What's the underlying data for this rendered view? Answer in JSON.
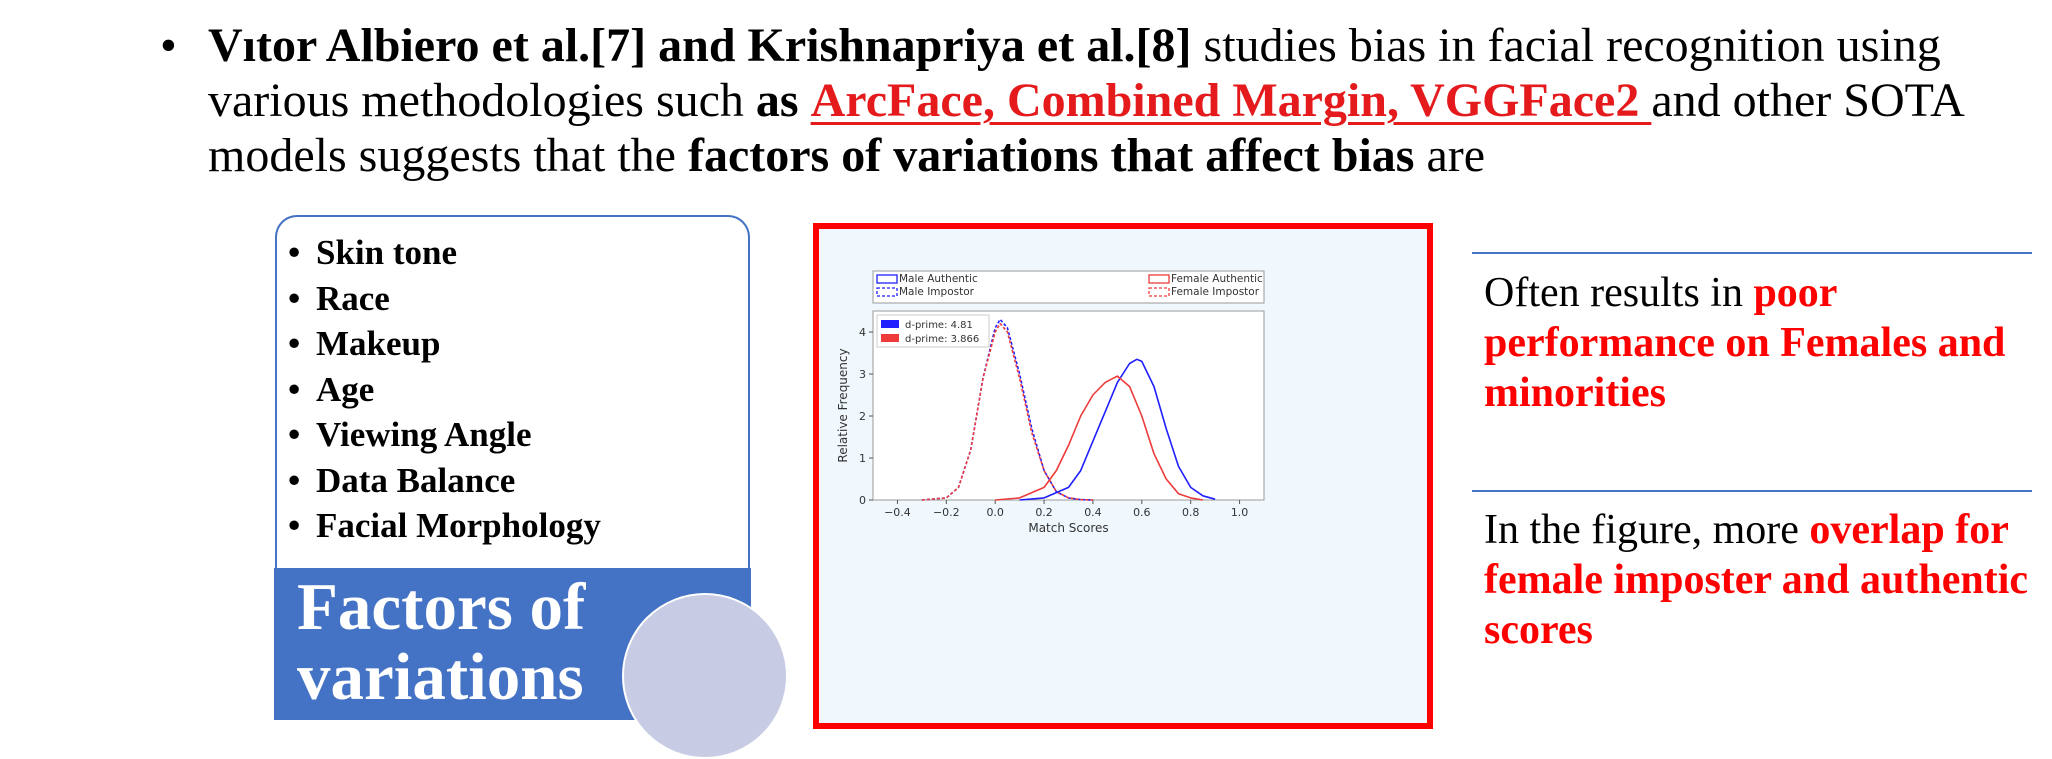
{
  "intro": {
    "bullet": "•",
    "authors": "Vıtor Albiero et al.[7] and Krishnapriya et al.[8]",
    "text1": " studies bias in facial recognition using various methodologies such ",
    "as_word": "as",
    "space": " ",
    "methods": "ArcFace, Combined Margin, VGGFace2 ",
    "text2": "and other SOTA models suggests that the ",
    "factors_phrase": "factors of variations that affect bias",
    "text3": " are"
  },
  "factors": {
    "bullet": "•",
    "items": [
      "Skin tone",
      "Race",
      "Makeup",
      "Age",
      "Viewing Angle",
      "Data Balance",
      "Facial Morphology"
    ],
    "title_line1": "Factors of",
    "title_line2": "variations"
  },
  "notes": [
    {
      "plain": "Often results in ",
      "highlight": "poor performance on Females and minorities"
    },
    {
      "plain": "In the figure, more ",
      "highlight": "overlap for female imposter and authentic scores"
    }
  ],
  "colors": {
    "accent_blue": "#4472c4",
    "highlight_red": "#ff0000",
    "male": "#1f1fff",
    "female": "#ef3b3b"
  },
  "chart_data": {
    "type": "line",
    "xlabel": "Match Scores",
    "ylabel": "Relative Frequency",
    "xlim": [
      -0.5,
      1.1
    ],
    "ylim": [
      0,
      4.5
    ],
    "xticks": [
      "−0.4",
      "−0.2",
      "0.0",
      "0.2",
      "0.4",
      "0.6",
      "0.8",
      "1.0"
    ],
    "xtick_values": [
      -0.4,
      -0.2,
      0.0,
      0.2,
      0.4,
      0.6,
      0.8,
      1.0
    ],
    "yticks": [
      "0",
      "1",
      "2",
      "3",
      "4"
    ],
    "ytick_values": [
      0,
      1,
      2,
      3,
      4
    ],
    "legend_top": [
      "Male Authentic",
      "Male Impostor",
      "Female Authentic",
      "Female Impostor"
    ],
    "legend_dprime": [
      "d-prime: 4.81",
      "d-prime: 3.866"
    ],
    "series": [
      {
        "name": "Male Impostor",
        "color": "#1f1fff",
        "style": "dashed",
        "x": [
          -0.3,
          -0.2,
          -0.15,
          -0.1,
          -0.05,
          0.0,
          0.02,
          0.05,
          0.1,
          0.15,
          0.2,
          0.25,
          0.3,
          0.35,
          0.4
        ],
        "y": [
          0.0,
          0.05,
          0.3,
          1.2,
          2.9,
          4.1,
          4.3,
          4.1,
          3.0,
          1.7,
          0.7,
          0.2,
          0.05,
          0.01,
          0.0
        ]
      },
      {
        "name": "Female Impostor",
        "color": "#ef3b3b",
        "style": "dashed",
        "x": [
          -0.3,
          -0.2,
          -0.15,
          -0.1,
          -0.05,
          0.0,
          0.02,
          0.05,
          0.1,
          0.15,
          0.2,
          0.25,
          0.3,
          0.35,
          0.4
        ],
        "y": [
          0.0,
          0.05,
          0.3,
          1.2,
          2.9,
          4.0,
          4.2,
          4.0,
          2.9,
          1.6,
          0.7,
          0.2,
          0.05,
          0.01,
          0.0
        ]
      },
      {
        "name": "Male Authentic",
        "color": "#1f1fff",
        "style": "solid",
        "x": [
          0.1,
          0.2,
          0.3,
          0.35,
          0.4,
          0.45,
          0.5,
          0.55,
          0.58,
          0.6,
          0.65,
          0.7,
          0.75,
          0.8,
          0.85,
          0.9
        ],
        "y": [
          0.0,
          0.05,
          0.3,
          0.7,
          1.4,
          2.1,
          2.8,
          3.25,
          3.35,
          3.3,
          2.7,
          1.7,
          0.8,
          0.3,
          0.1,
          0.02
        ]
      },
      {
        "name": "Female Authentic",
        "color": "#ef3b3b",
        "style": "solid",
        "x": [
          0.0,
          0.1,
          0.2,
          0.25,
          0.3,
          0.35,
          0.4,
          0.45,
          0.5,
          0.55,
          0.6,
          0.65,
          0.7,
          0.75,
          0.8,
          0.85
        ],
        "y": [
          0.0,
          0.05,
          0.3,
          0.7,
          1.3,
          2.0,
          2.5,
          2.8,
          2.95,
          2.7,
          2.0,
          1.1,
          0.5,
          0.15,
          0.05,
          0.0
        ]
      }
    ]
  }
}
